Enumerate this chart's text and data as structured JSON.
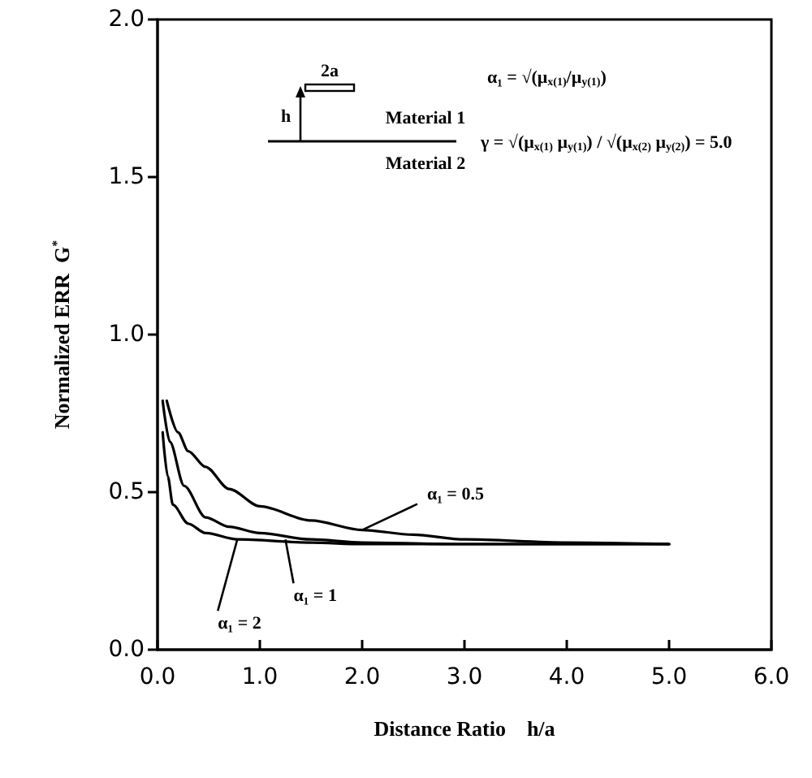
{
  "chart_data": {
    "type": "line",
    "xlabel": "Distance Ratio    h/a",
    "ylabel": "Normalized ERR  G$^{*}$",
    "xlim": [
      0,
      6
    ],
    "ylim": [
      0,
      2
    ],
    "xticks": [
      {
        "value": 0,
        "label": "0.0"
      },
      {
        "value": 1,
        "label": "1.0"
      },
      {
        "value": 2,
        "label": "2.0"
      },
      {
        "value": 3,
        "label": "3.0"
      },
      {
        "value": 4,
        "label": "4.0"
      },
      {
        "value": 5,
        "label": "5.0"
      },
      {
        "value": 6,
        "label": "6.0"
      }
    ],
    "yticks": [
      {
        "value": 0,
        "label": "0.0"
      },
      {
        "value": 0.5,
        "label": "0.5"
      },
      {
        "value": 1,
        "label": "1.0"
      },
      {
        "value": 1.5,
        "label": "1.5"
      },
      {
        "value": 2,
        "label": "2.0"
      }
    ],
    "marker": "none",
    "line_style": "solid",
    "series": [
      {
        "color": "#000000",
        "x": [
          0.09,
          0.2,
          0.3,
          0.47,
          0.7,
          1.0,
          1.5,
          2.0,
          2.5,
          3.0,
          4.0,
          5.0
        ],
        "values": [
          0.79,
          0.69,
          0.63,
          0.58,
          0.51,
          0.455,
          0.41,
          0.38,
          0.365,
          0.35,
          0.34,
          0.335
        ]
      },
      {
        "color": "#000000",
        "x": [
          0.05,
          0.12,
          0.26,
          0.47,
          0.7,
          1.0,
          1.5,
          2.0,
          3.0,
          4.0,
          5.0
        ],
        "values": [
          0.79,
          0.66,
          0.52,
          0.42,
          0.39,
          0.37,
          0.35,
          0.34,
          0.335,
          0.335,
          0.335
        ]
      },
      {
        "color": "#000000",
        "x": [
          0.05,
          0.1,
          0.15,
          0.3,
          0.47,
          0.78,
          1.5,
          2.0,
          3.0,
          4.0,
          5.0
        ],
        "values": [
          0.69,
          0.55,
          0.46,
          0.4,
          0.37,
          0.35,
          0.34,
          0.335,
          0.335,
          0.335,
          0.335
        ]
      }
    ],
    "annotations": [
      "2a",
      "h",
      "Material 1",
      "Material 2",
      "α₁ = √(μ$_{x(1)}$/μ$_{y(1)}$)",
      "γ = √(μ$_{x(1)}$ μ$_{y(1)}$) / √(μ$_{x(2)}$ μ$_{y(2)}$) = 5.0",
      {
        "text": "α₁ = 0.5",
        "x": 2.0,
        "y": 0.38
      },
      {
        "text": "α₁ = 1",
        "x": 1.25,
        "y": 0.35
      },
      {
        "text": "α₁ = 2",
        "x": 0.78,
        "y": 0.35
      }
    ]
  }
}
